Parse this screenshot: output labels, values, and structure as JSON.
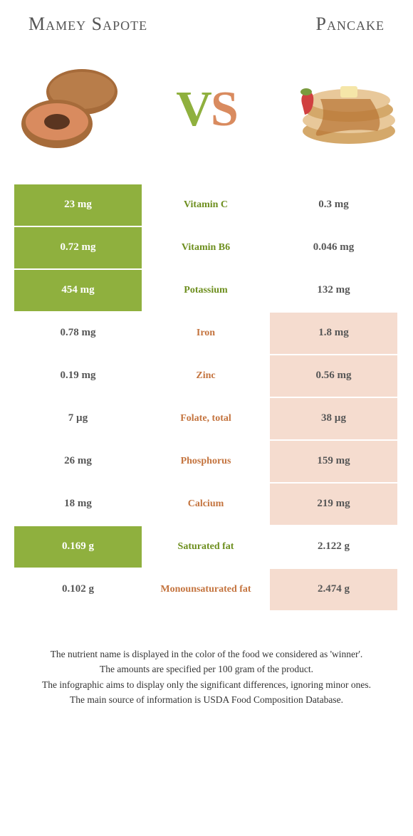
{
  "header": {
    "left_title": "Mamey Sapote",
    "right_title": "Pancake"
  },
  "vs": {
    "v": "V",
    "s": "S"
  },
  "colors": {
    "green": "#8fb03e",
    "green_text": "#6e8f1f",
    "orange_text": "#c4743f",
    "pink": "#f5dccf",
    "white": "#ffffff",
    "title": "#555555",
    "mamey_brown": "#a66b3a",
    "mamey_flesh": "#d98b5f",
    "pancake_tan": "#e8c89a",
    "pancake_syrup": "#b87333",
    "strawberry": "#d04040"
  },
  "rows": [
    {
      "left": "23 mg",
      "mid": "Vitamin C",
      "right": "0.3 mg",
      "winner": "left"
    },
    {
      "left": "0.72 mg",
      "mid": "Vitamin B6",
      "right": "0.046 mg",
      "winner": "left"
    },
    {
      "left": "454 mg",
      "mid": "Potassium",
      "right": "132 mg",
      "winner": "left"
    },
    {
      "left": "0.78 mg",
      "mid": "Iron",
      "right": "1.8 mg",
      "winner": "right"
    },
    {
      "left": "0.19 mg",
      "mid": "Zinc",
      "right": "0.56 mg",
      "winner": "right"
    },
    {
      "left": "7 µg",
      "mid": "Folate, total",
      "right": "38 µg",
      "winner": "right"
    },
    {
      "left": "26 mg",
      "mid": "Phosphorus",
      "right": "159 mg",
      "winner": "right"
    },
    {
      "left": "18 mg",
      "mid": "Calcium",
      "right": "219 mg",
      "winner": "right"
    },
    {
      "left": "0.169 g",
      "mid": "Saturated fat",
      "right": "2.122 g",
      "winner": "left"
    },
    {
      "left": "0.102 g",
      "mid": "Monounsaturated fat",
      "right": "2.474 g",
      "winner": "right"
    }
  ],
  "footer": {
    "line1": "The nutrient name is displayed in the color of the food we considered as 'winner'.",
    "line2": "The amounts are specified per 100 gram of the product.",
    "line3": "The infographic aims to display only the significant differences, ignoring minor ones.",
    "line4": "The main source of information is USDA Food Composition Database."
  }
}
